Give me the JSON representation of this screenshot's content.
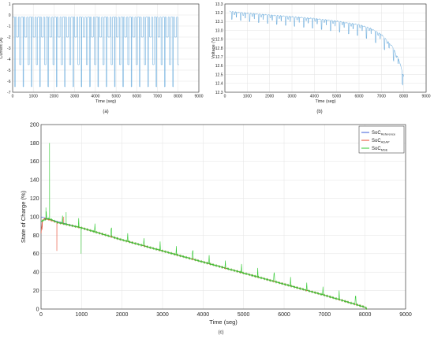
{
  "chart_data": [
    {
      "type": "line",
      "id": "current",
      "caption": "(a)",
      "xlabel": "Time (seg)",
      "ylabel": "Current (A)",
      "xlim": [
        0,
        9000
      ],
      "ylim": [
        -7,
        1
      ],
      "xticks": [
        0,
        1000,
        2000,
        3000,
        4000,
        5000,
        6000,
        7000,
        8000,
        9000
      ],
      "yticks": [
        1,
        0,
        -1,
        -2,
        -3,
        -4,
        -5,
        -6,
        -7
      ],
      "grid": true,
      "series": [
        {
          "color": "#5ba3d9",
          "pattern": {
            "t_start": 0,
            "t_end": 8050,
            "cycle_period": 402,
            "cycles": 20,
            "segments": [
              {
                "current": -0.2,
                "duration": 100
              },
              {
                "current": -6.5,
                "duration": 30
              },
              {
                "current": -0.2,
                "duration": 60
              },
              {
                "current": -2.0,
                "duration": 90
              },
              {
                "current": -0.2,
                "duration": 60
              },
              {
                "current": -4.5,
                "duration": 62
              }
            ]
          }
        }
      ]
    },
    {
      "type": "line",
      "id": "voltage",
      "caption": "(b)",
      "xlabel": "Time (seg)",
      "ylabel": "Voltage (V)",
      "xlim": [
        0,
        9000
      ],
      "ylim": [
        12.3,
        13.3
      ],
      "xticks": [
        0,
        1000,
        2000,
        3000,
        4000,
        5000,
        6000,
        7000,
        8000,
        9000
      ],
      "yticks": [
        13.3,
        13.2,
        13.1,
        13.0,
        12.9,
        12.8,
        12.7,
        12.6,
        12.5,
        12.4,
        12.3
      ],
      "grid": true,
      "series": [
        {
          "color": "#5ba3d9",
          "upper_envelope": {
            "t": [
              200,
              1000,
              2000,
              3000,
              4000,
              5000,
              6000,
              6500,
              7000,
              7500,
              7800,
              8000
            ],
            "v": [
              13.22,
              13.2,
              13.18,
              13.16,
              13.14,
              13.11,
              13.07,
              13.03,
              12.96,
              12.82,
              12.66,
              12.48
            ]
          },
          "dip_depth": 0.09,
          "cycle_period": 402
        }
      ]
    },
    {
      "type": "line",
      "id": "soc",
      "caption": "(c)",
      "xlabel": "Time (seg)",
      "ylabel": "State of Charge (%)",
      "xlim": [
        0,
        9000
      ],
      "ylim": [
        0,
        200
      ],
      "xticks": [
        0,
        1000,
        2000,
        3000,
        4000,
        5000,
        6000,
        7000,
        8000,
        9000
      ],
      "yticks": [
        200,
        180,
        160,
        140,
        120,
        100,
        80,
        60,
        40,
        20,
        0
      ],
      "grid": true,
      "legend": "top-right",
      "series": [
        {
          "legend_main": "SoC",
          "legend_sub": "Reference",
          "color": "#3b5bd9",
          "x": [
            0,
            400,
            1000,
            2000,
            3000,
            4000,
            5000,
            6000,
            7000,
            8000,
            8050
          ],
          "y": [
            100,
            95,
            88,
            75,
            63,
            51,
            39,
            27,
            15,
            2,
            0
          ]
        },
        {
          "legend_main": "SoC",
          "legend_sub": "ADAP",
          "color": "#e8482e",
          "x": [
            0,
            30,
            80,
            200,
            400,
            1000,
            2000,
            3000,
            4000,
            5000,
            6000,
            7000,
            8000,
            8050
          ],
          "y": [
            82,
            95,
            98,
            97,
            94,
            88,
            75,
            63,
            51,
            39,
            27,
            15,
            2,
            0
          ],
          "spikes": [
            {
              "t": 30,
              "v": 86
            },
            {
              "t": 390,
              "v": 63
            },
            {
              "t": 560,
              "v": 100
            }
          ]
        },
        {
          "legend_main": "SoC",
          "legend_sub": "MSE",
          "color": "#2fc92f",
          "x": [
            0,
            100,
            200,
            400,
            1000,
            2000,
            3000,
            4000,
            5000,
            6000,
            7000,
            8000,
            8050
          ],
          "y": [
            95,
            97,
            98,
            94,
            88,
            75,
            63,
            51,
            39,
            27,
            15,
            2,
            0
          ],
          "spikes": [
            {
              "t": 210,
              "v": 180
            },
            {
              "t": 120,
              "v": 110
            },
            {
              "t": 620,
              "v": 105
            },
            {
              "t": 990,
              "v": 60
            }
          ],
          "periodic_spike_amplitude": 9,
          "cycle_period": 402
        }
      ]
    }
  ]
}
